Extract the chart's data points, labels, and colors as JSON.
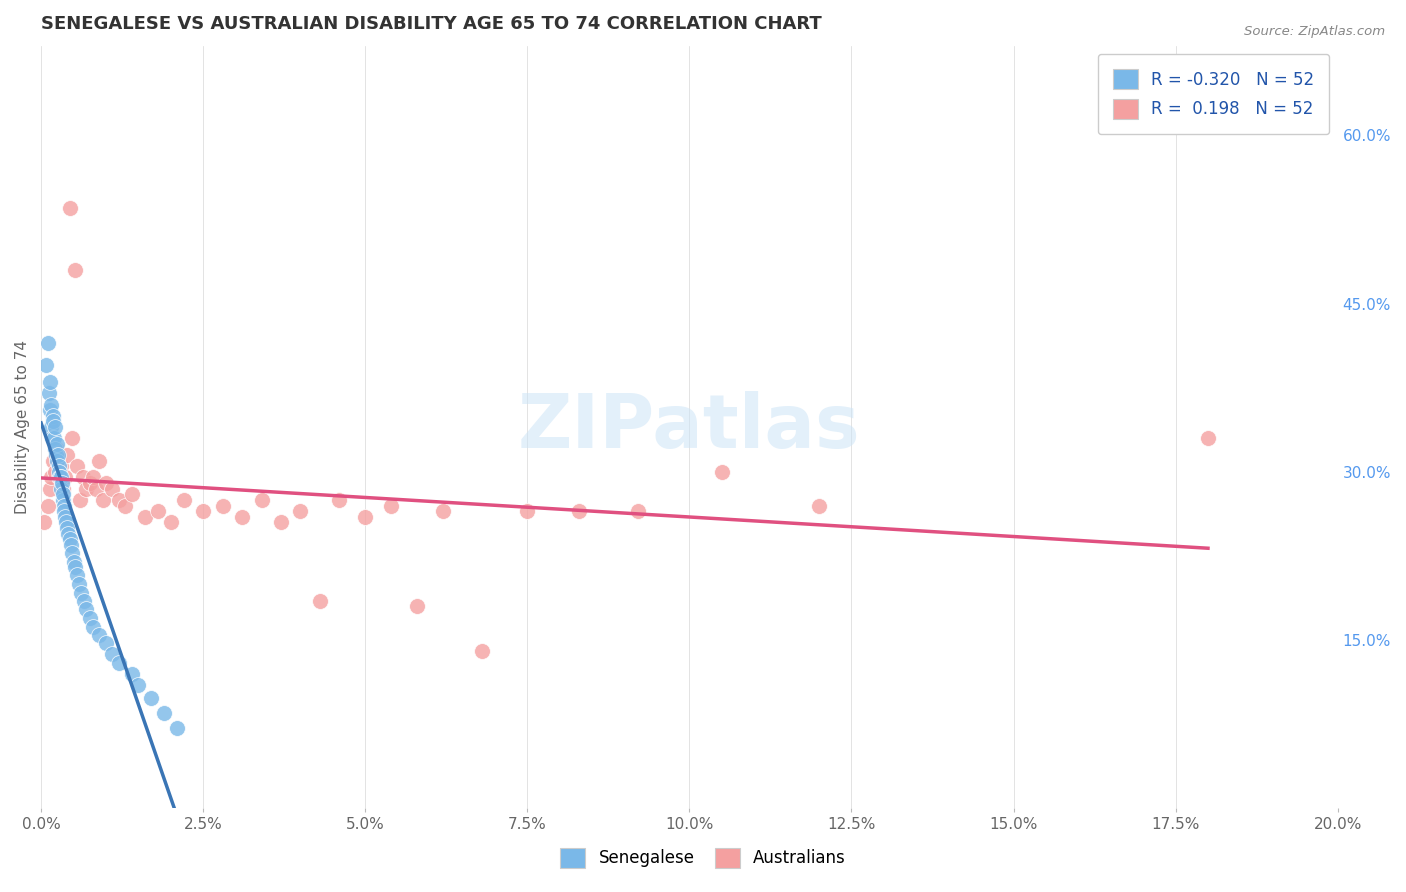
{
  "title": "SENEGALESE VS AUSTRALIAN DISABILITY AGE 65 TO 74 CORRELATION CHART",
  "source": "Source: ZipAtlas.com",
  "ylabel": "Disability Age 65 to 74",
  "xlim": [
    0.0,
    0.2
  ],
  "ylim": [
    0.0,
    0.68
  ],
  "xtick_labels": [
    "0.0%",
    "2.5%",
    "5.0%",
    "7.5%",
    "10.0%",
    "12.5%",
    "15.0%",
    "17.5%",
    "20.0%"
  ],
  "xtick_vals": [
    0.0,
    0.025,
    0.05,
    0.075,
    0.1,
    0.125,
    0.15,
    0.175,
    0.2
  ],
  "ytick_labels_right": [
    "15.0%",
    "30.0%",
    "45.0%",
    "60.0%"
  ],
  "ytick_vals_right": [
    0.15,
    0.3,
    0.45,
    0.6
  ],
  "r_senegalese": -0.32,
  "r_australians": 0.198,
  "n_senegalese": 52,
  "n_australians": 52,
  "blue_color": "#7ab8e8",
  "pink_color": "#f4a0a0",
  "blue_line_color": "#3a75b5",
  "pink_line_color": "#e05080",
  "watermark": "ZIPatlas",
  "background_color": "#ffffff",
  "grid_color": "#d8d8d8",
  "title_color": "#333333",
  "right_label_color": "#5599ee",
  "senegalese_x": [
    0.0008,
    0.001,
    0.0012,
    0.0013,
    0.0014,
    0.0015,
    0.0016,
    0.0017,
    0.0018,
    0.0019,
    0.002,
    0.0021,
    0.0022,
    0.0023,
    0.0024,
    0.0025,
    0.0026,
    0.0027,
    0.0028,
    0.0029,
    0.003,
    0.0031,
    0.0032,
    0.0033,
    0.0034,
    0.0035,
    0.0036,
    0.0037,
    0.0038,
    0.004,
    0.0042,
    0.0044,
    0.0046,
    0.0048,
    0.005,
    0.0052,
    0.0055,
    0.0058,
    0.0062,
    0.0066,
    0.007,
    0.0075,
    0.008,
    0.009,
    0.01,
    0.011,
    0.012,
    0.014,
    0.015,
    0.017,
    0.019,
    0.021
  ],
  "senegalese_y": [
    0.395,
    0.415,
    0.37,
    0.355,
    0.38,
    0.36,
    0.34,
    0.33,
    0.35,
    0.345,
    0.33,
    0.34,
    0.32,
    0.315,
    0.325,
    0.31,
    0.315,
    0.305,
    0.3,
    0.295,
    0.295,
    0.285,
    0.29,
    0.275,
    0.28,
    0.27,
    0.265,
    0.26,
    0.255,
    0.25,
    0.245,
    0.24,
    0.235,
    0.228,
    0.22,
    0.215,
    0.208,
    0.2,
    0.192,
    0.185,
    0.178,
    0.17,
    0.162,
    0.155,
    0.147,
    0.138,
    0.13,
    0.12,
    0.11,
    0.098,
    0.085,
    0.072
  ],
  "australians_x": [
    0.0005,
    0.001,
    0.0013,
    0.0016,
    0.0019,
    0.0022,
    0.0025,
    0.0028,
    0.0031,
    0.0034,
    0.0037,
    0.004,
    0.0044,
    0.0048,
    0.0052,
    0.0056,
    0.006,
    0.0065,
    0.007,
    0.0075,
    0.008,
    0.0085,
    0.009,
    0.0095,
    0.01,
    0.011,
    0.012,
    0.013,
    0.014,
    0.016,
    0.018,
    0.02,
    0.022,
    0.025,
    0.028,
    0.031,
    0.034,
    0.037,
    0.04,
    0.043,
    0.046,
    0.05,
    0.054,
    0.058,
    0.062,
    0.068,
    0.075,
    0.083,
    0.092,
    0.105,
    0.12,
    0.18
  ],
  "australians_y": [
    0.255,
    0.27,
    0.285,
    0.295,
    0.31,
    0.3,
    0.32,
    0.295,
    0.305,
    0.285,
    0.295,
    0.315,
    0.535,
    0.33,
    0.48,
    0.305,
    0.275,
    0.295,
    0.285,
    0.29,
    0.295,
    0.285,
    0.31,
    0.275,
    0.29,
    0.285,
    0.275,
    0.27,
    0.28,
    0.26,
    0.265,
    0.255,
    0.275,
    0.265,
    0.27,
    0.26,
    0.275,
    0.255,
    0.265,
    0.185,
    0.275,
    0.26,
    0.27,
    0.18,
    0.265,
    0.14,
    0.265,
    0.265,
    0.265,
    0.3,
    0.27,
    0.33
  ]
}
